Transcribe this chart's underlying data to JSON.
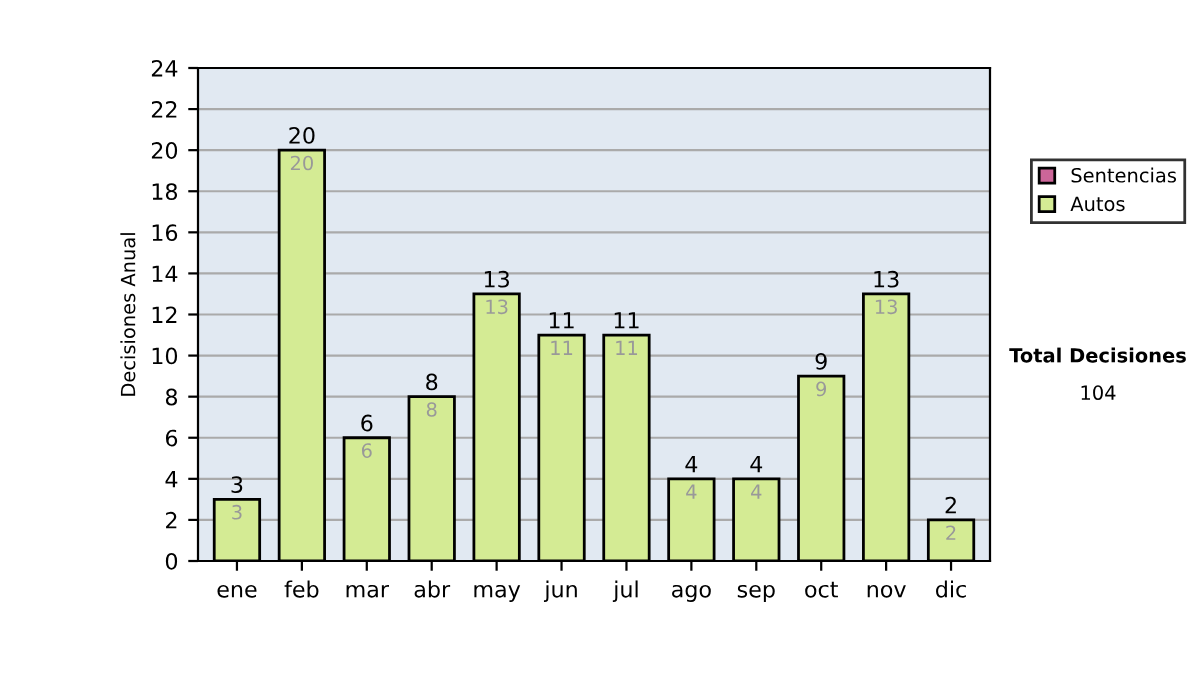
{
  "chart_data": {
    "type": "bar",
    "stacked": true,
    "ylabel": "Decisiones Anual",
    "categories": [
      "ene",
      "feb",
      "mar",
      "abr",
      "may",
      "jun",
      "jul",
      "ago",
      "sep",
      "oct",
      "nov",
      "dic"
    ],
    "series": [
      {
        "name": "Sentencias",
        "color": "#cc6699",
        "values": [
          0,
          0,
          0,
          0,
          0,
          0,
          0,
          0,
          0,
          0,
          0,
          0
        ]
      },
      {
        "name": "Autos",
        "color": "#d4eb94",
        "values": [
          3,
          20,
          6,
          8,
          13,
          11,
          11,
          4,
          4,
          9,
          13,
          2
        ],
        "value_labels": [
          "3",
          "20",
          "6",
          "8",
          "13",
          "11",
          "11",
          "4",
          "4",
          "9",
          "13",
          "2"
        ]
      }
    ],
    "totals": [
      "3",
      "20",
      "6",
      "8",
      "13",
      "11",
      "11",
      "4",
      "4",
      "9",
      "13",
      "2"
    ],
    "ylim": [
      0,
      24
    ],
    "yticks": [
      0,
      2,
      4,
      6,
      8,
      10,
      12,
      14,
      16,
      18,
      20,
      22,
      24
    ],
    "grid": "y",
    "legend": "right",
    "annotations": [
      "Total Decisiones",
      "104"
    ]
  }
}
